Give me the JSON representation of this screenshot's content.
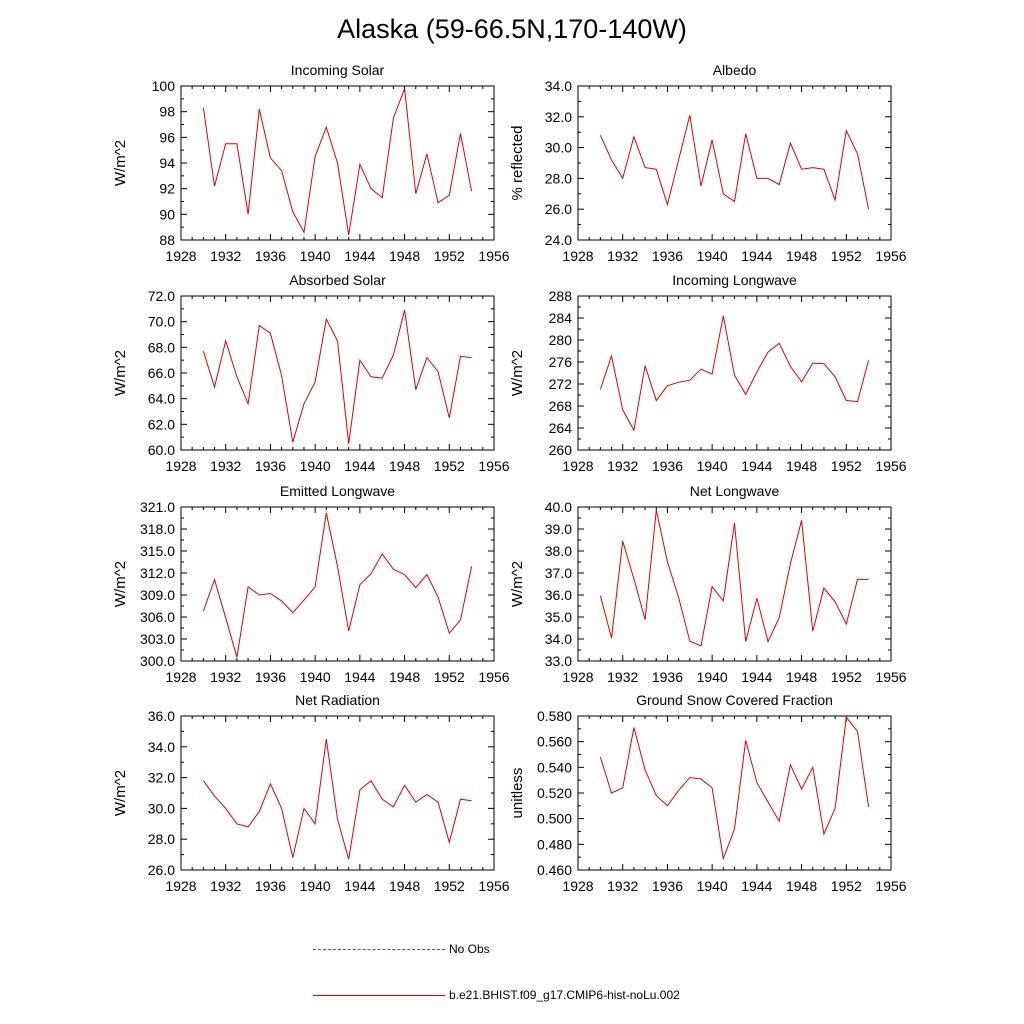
{
  "title": "Alaska (59-66.5N,170-140W)",
  "legend": {
    "obs_label": "No Obs",
    "obs_color": "#3f51b5",
    "model_label": "b.e21.BHIST.f09_g17.CMIP6-hist-noLu.002",
    "model_color": "#e00000"
  },
  "chart_data": [
    {
      "type": "line",
      "title": "Incoming Solar",
      "ylabel": "W/m^2",
      "xlim": [
        1928,
        1956
      ],
      "ylim": [
        88,
        100
      ],
      "yticks": [
        "88",
        "90",
        "92",
        "94",
        "96",
        "98",
        "100"
      ],
      "xticks": [
        "1928",
        "1932",
        "1936",
        "1940",
        "1944",
        "1948",
        "1952",
        "1956"
      ],
      "x": [
        1930,
        1931,
        1932,
        1933,
        1934,
        1935,
        1936,
        1937,
        1938,
        1939,
        1940,
        1941,
        1942,
        1943,
        1944,
        1945,
        1946,
        1947,
        1948,
        1949,
        1950,
        1951,
        1952,
        1953,
        1954
      ],
      "y": [
        98.3,
        92.2,
        95.5,
        95.5,
        90.0,
        98.2,
        94.4,
        93.4,
        90.2,
        88.6,
        94.5,
        96.8,
        94.0,
        88.4,
        93.9,
        92.0,
        91.3,
        97.5,
        99.8,
        91.6,
        94.7,
        90.9,
        91.5,
        96.3,
        91.8
      ]
    },
    {
      "type": "line",
      "title": "Albedo",
      "ylabel": "% reflected",
      "xlim": [
        1928,
        1956
      ],
      "ylim": [
        24,
        34
      ],
      "yticks": [
        "24.0",
        "26.0",
        "28.0",
        "30.0",
        "32.0",
        "34.0"
      ],
      "xticks": [
        "1928",
        "1932",
        "1936",
        "1940",
        "1944",
        "1948",
        "1952",
        "1956"
      ],
      "x": [
        1930,
        1931,
        1932,
        1933,
        1934,
        1935,
        1936,
        1937,
        1938,
        1939,
        1940,
        1941,
        1942,
        1943,
        1944,
        1945,
        1946,
        1947,
        1948,
        1949,
        1950,
        1951,
        1952,
        1953,
        1954
      ],
      "y": [
        30.8,
        29.2,
        28.0,
        30.7,
        28.7,
        28.6,
        26.3,
        29.2,
        32.1,
        27.5,
        30.5,
        27.0,
        26.5,
        30.9,
        28.0,
        28.0,
        27.6,
        30.3,
        28.6,
        28.7,
        28.6,
        26.6,
        31.1,
        29.6,
        26.0
      ]
    },
    {
      "type": "line",
      "title": "Absorbed Solar",
      "ylabel": "W/m^2",
      "xlim": [
        1928,
        1956
      ],
      "ylim": [
        60,
        72
      ],
      "yticks": [
        "60.0",
        "62.0",
        "64.0",
        "66.0",
        "68.0",
        "70.0",
        "72.0"
      ],
      "xticks": [
        "1928",
        "1932",
        "1936",
        "1940",
        "1944",
        "1948",
        "1952",
        "1956"
      ],
      "x": [
        1930,
        1931,
        1932,
        1933,
        1934,
        1935,
        1936,
        1937,
        1938,
        1939,
        1940,
        1941,
        1942,
        1943,
        1944,
        1945,
        1946,
        1947,
        1948,
        1949,
        1950,
        1951,
        1952,
        1953,
        1954
      ],
      "y": [
        67.7,
        64.9,
        68.5,
        65.7,
        63.6,
        69.7,
        69.1,
        65.8,
        60.6,
        63.6,
        65.3,
        70.2,
        68.5,
        60.5,
        67.0,
        65.7,
        65.6,
        67.4,
        70.9,
        64.7,
        67.2,
        66.1,
        62.5,
        67.3,
        67.2
      ]
    },
    {
      "type": "line",
      "title": "Incoming Longwave",
      "ylabel": "W/m^2",
      "xlim": [
        1928,
        1956
      ],
      "ylim": [
        260,
        288
      ],
      "yticks": [
        "260",
        "264",
        "268",
        "272",
        "276",
        "280",
        "284",
        "288"
      ],
      "xticks": [
        "1928",
        "1932",
        "1936",
        "1940",
        "1944",
        "1948",
        "1952",
        "1956"
      ],
      "x": [
        1930,
        1931,
        1932,
        1933,
        1934,
        1935,
        1936,
        1937,
        1938,
        1939,
        1940,
        1941,
        1942,
        1943,
        1944,
        1945,
        1946,
        1947,
        1948,
        1949,
        1950,
        1951,
        1952,
        1953,
        1954
      ],
      "y": [
        271.0,
        277.1,
        267.3,
        263.6,
        275.3,
        269.0,
        271.7,
        272.3,
        272.7,
        274.7,
        273.8,
        284.4,
        273.6,
        270.1,
        274.2,
        277.8,
        279.4,
        275.2,
        272.4,
        275.8,
        275.7,
        273.3,
        269.0,
        268.8,
        276.3
      ]
    },
    {
      "type": "line",
      "title": "Emitted Longwave",
      "ylabel": "W/m^2",
      "xlim": [
        1928,
        1956
      ],
      "ylim": [
        300,
        321
      ],
      "yticks": [
        "300.0",
        "303.0",
        "306.0",
        "309.0",
        "312.0",
        "315.0",
        "318.0",
        "321.0"
      ],
      "xticks": [
        "1928",
        "1932",
        "1936",
        "1940",
        "1944",
        "1948",
        "1952",
        "1956"
      ],
      "x": [
        1930,
        1931,
        1932,
        1933,
        1934,
        1935,
        1936,
        1937,
        1938,
        1939,
        1940,
        1941,
        1942,
        1943,
        1944,
        1945,
        1946,
        1947,
        1948,
        1949,
        1950,
        1951,
        1952,
        1953,
        1954
      ],
      "y": [
        306.8,
        311.1,
        305.9,
        300.5,
        310.1,
        309.0,
        309.2,
        308.2,
        306.6,
        308.3,
        310.1,
        320.2,
        312.9,
        304.1,
        310.4,
        311.9,
        314.6,
        312.5,
        311.8,
        310.0,
        311.8,
        308.7,
        303.8,
        305.6,
        312.9
      ]
    },
    {
      "type": "line",
      "title": "Net Longwave",
      "ylabel": "W/m^2",
      "xlim": [
        1928,
        1956
      ],
      "ylim": [
        33,
        40
      ],
      "yticks": [
        "33.0",
        "34.0",
        "35.0",
        "36.0",
        "37.0",
        "38.0",
        "39.0",
        "40.0"
      ],
      "xticks": [
        "1928",
        "1932",
        "1936",
        "1940",
        "1944",
        "1948",
        "1952",
        "1956"
      ],
      "x": [
        1930,
        1931,
        1932,
        1933,
        1934,
        1935,
        1936,
        1937,
        1938,
        1939,
        1940,
        1941,
        1942,
        1943,
        1944,
        1945,
        1946,
        1947,
        1948,
        1949,
        1950,
        1951,
        1952,
        1953,
        1954
      ],
      "y": [
        35.97,
        34.05,
        38.45,
        36.73,
        34.88,
        39.86,
        37.52,
        35.89,
        33.9,
        33.69,
        36.38,
        35.73,
        39.27,
        33.88,
        35.86,
        33.88,
        34.97,
        37.42,
        39.4,
        34.35,
        36.32,
        35.69,
        34.68,
        36.71,
        36.71
      ]
    },
    {
      "type": "line",
      "title": "Net Radiation",
      "ylabel": "W/m^2",
      "xlim": [
        1928,
        1956
      ],
      "ylim": [
        26,
        36
      ],
      "yticks": [
        "26.0",
        "28.0",
        "30.0",
        "32.0",
        "34.0",
        "36.0"
      ],
      "xticks": [
        "1928",
        "1932",
        "1936",
        "1940",
        "1944",
        "1948",
        "1952",
        "1956"
      ],
      "x": [
        1930,
        1931,
        1932,
        1933,
        1934,
        1935,
        1936,
        1937,
        1938,
        1939,
        1940,
        1941,
        1942,
        1943,
        1944,
        1945,
        1946,
        1947,
        1948,
        1949,
        1950,
        1951,
        1952,
        1953,
        1954
      ],
      "y": [
        31.8,
        30.8,
        30.0,
        29.0,
        28.8,
        29.8,
        31.6,
        30.0,
        26.8,
        30.0,
        29.0,
        34.5,
        29.3,
        26.7,
        31.2,
        31.8,
        30.6,
        30.1,
        31.5,
        30.4,
        30.9,
        30.4,
        27.8,
        30.6,
        30.5
      ]
    },
    {
      "type": "line",
      "title": "Ground Snow Covered Fraction",
      "ylabel": "unitless",
      "xlim": [
        1928,
        1956
      ],
      "ylim": [
        0.46,
        0.58
      ],
      "yticks": [
        "0.460",
        "0.480",
        "0.500",
        "0.520",
        "0.540",
        "0.560",
        "0.580"
      ],
      "xticks": [
        "1928",
        "1932",
        "1936",
        "1940",
        "1944",
        "1948",
        "1952",
        "1956"
      ],
      "x": [
        1930,
        1931,
        1932,
        1933,
        1934,
        1935,
        1936,
        1937,
        1938,
        1939,
        1940,
        1941,
        1942,
        1943,
        1944,
        1945,
        1946,
        1947,
        1948,
        1949,
        1950,
        1951,
        1952,
        1953,
        1954
      ],
      "y": [
        0.548,
        0.52,
        0.524,
        0.571,
        0.538,
        0.518,
        0.51,
        0.522,
        0.532,
        0.531,
        0.524,
        0.469,
        0.492,
        0.561,
        0.528,
        0.513,
        0.498,
        0.542,
        0.523,
        0.54,
        0.488,
        0.508,
        0.579,
        0.568,
        0.509
      ]
    }
  ]
}
